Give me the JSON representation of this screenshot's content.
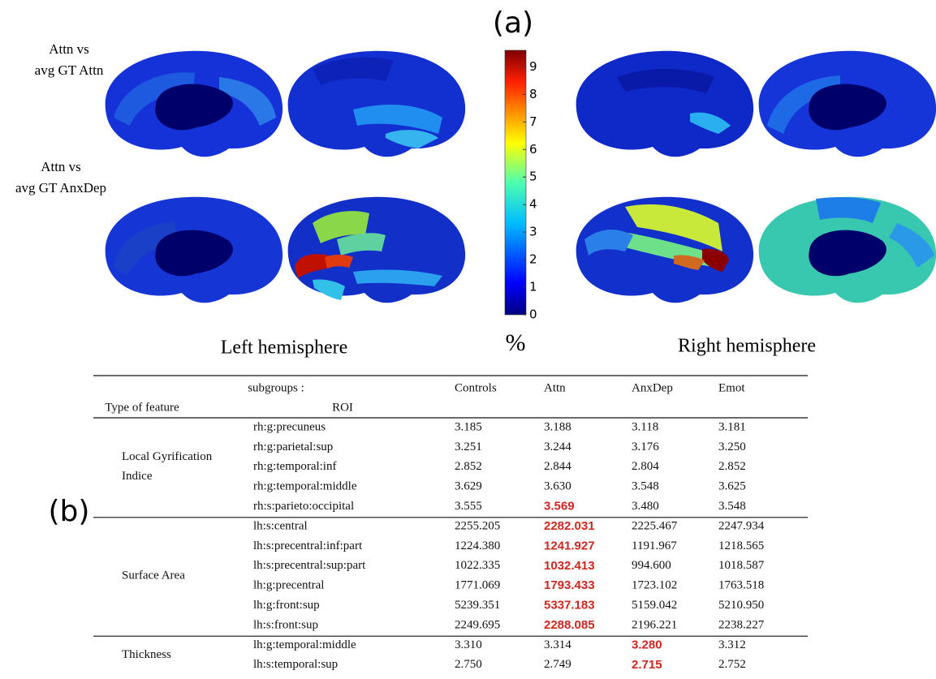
{
  "panel_a": {
    "label": "(a)",
    "row_labels": [
      [
        "Attn vs",
        "avg GT Attn"
      ],
      [
        "Attn vs",
        "avg GT AnxDep"
      ]
    ],
    "colorbar": {
      "ticks": [
        0,
        1,
        2,
        3,
        4,
        5,
        6,
        7,
        8,
        9
      ],
      "unit": "%"
    },
    "hemisphere_labels": [
      "Left hemisphere",
      "Right hemisphere"
    ]
  },
  "panel_b": {
    "label": "(b)",
    "table": {
      "header_top": "subgroups :",
      "header_left": "Type of feature",
      "header_roi": "ROI",
      "columns": [
        "Controls",
        "Attn",
        "AnxDep",
        "Emot"
      ],
      "groups": [
        {
          "name": [
            "Local Gyrification",
            "Indice"
          ],
          "rows": [
            {
              "roi": "rh:g:precuneus",
              "values": [
                "3.185",
                "3.188",
                "3.118",
                "3.181"
              ]
            },
            {
              "roi": "rh:g:parietal:sup",
              "values": [
                "3.251",
                "3.244",
                "3.176",
                "3.250"
              ]
            },
            {
              "roi": "rh:g:temporal:inf",
              "values": [
                "2.852",
                "2.844",
                "2.804",
                "2.852"
              ]
            },
            {
              "roi": "rh:g:temporal:middle",
              "values": [
                "3.629",
                "3.630",
                "3.548",
                "3.625"
              ]
            },
            {
              "roi": "rh:s:parieto:occipital",
              "values": [
                "3.555",
                "3.569",
                "3.480",
                "3.548"
              ],
              "highlight": 1
            }
          ]
        },
        {
          "name": [
            "Surface Area"
          ],
          "rows": [
            {
              "roi": "lh:s:central",
              "values": [
                "2255.205",
                "2282.031",
                "2225.467",
                "2247.934"
              ],
              "highlight": 1
            },
            {
              "roi": "lh:s:precentral:inf:part",
              "values": [
                "1224.380",
                "1241.927",
                "1191.967",
                "1218.565"
              ],
              "highlight": 1
            },
            {
              "roi": "lh:s:precentral:sup:part",
              "values": [
                "1022.335",
                "1032.413",
                "994.600",
                "1018.587"
              ],
              "highlight": 1
            },
            {
              "roi": "lh:g:precentral",
              "values": [
                "1771.069",
                "1793.433",
                "1723.102",
                "1763.518"
              ],
              "highlight": 1
            },
            {
              "roi": "lh:g:front:sup",
              "values": [
                "5239.351",
                "5337.183",
                "5159.042",
                "5210.950"
              ],
              "highlight": 1
            },
            {
              "roi": "lh:s:front:sup",
              "values": [
                "2249.695",
                "2288.085",
                "2196.221",
                "2238.227"
              ],
              "highlight": 1
            }
          ]
        },
        {
          "name": [
            "Thickness"
          ],
          "rows": [
            {
              "roi": "lh:g:temporal:middle",
              "values": [
                "3.310",
                "3.314",
                "3.280",
                "3.312"
              ],
              "highlight": 2
            },
            {
              "roi": "lh:s:temporal:sup",
              "values": [
                "2.750",
                "2.749",
                "2.715",
                "2.752"
              ],
              "highlight": 2
            }
          ]
        }
      ]
    }
  }
}
